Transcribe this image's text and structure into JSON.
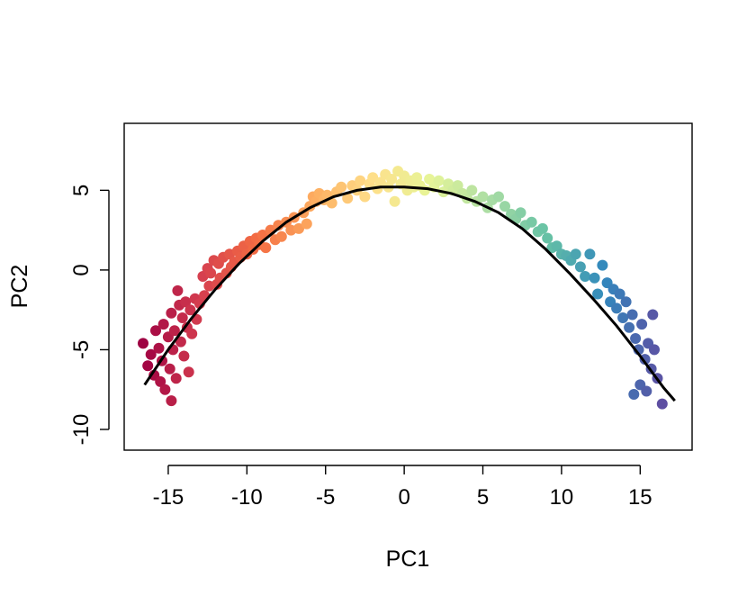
{
  "chart_data": {
    "type": "scatter",
    "title": "",
    "xlabel": "PC1",
    "ylabel": "PC2",
    "xlim": [
      -17.8,
      18.3
    ],
    "ylim": [
      -11.3,
      9.2
    ],
    "xticks": [
      -15,
      -10,
      -5,
      0,
      5,
      10,
      15
    ],
    "yticks": [
      -10,
      -5,
      0,
      5
    ],
    "xtick_labels": [
      "-15",
      "-10",
      "-5",
      "0",
      "5",
      "10",
      "15"
    ],
    "ytick_labels": [
      "-10",
      "-5",
      "0",
      "5"
    ],
    "grid": false,
    "legend": "none",
    "point_color_scale": "Spectral (dark red at PC1 = -16 through yellow near 0 to purple at PC1 = 16.5)",
    "colors": {
      "axis": "#000000",
      "curve": "#000000",
      "palette": [
        "#9e0142",
        "#d53e4f",
        "#f46d43",
        "#fdae61",
        "#fee08b",
        "#e6f598",
        "#abdda4",
        "#66c2a5",
        "#3288bd",
        "#5e4fa2"
      ]
    },
    "fitted_curve": {
      "name": "",
      "x": [
        -16.5,
        -15,
        -13.5,
        -12,
        -10.5,
        -9,
        -7.5,
        -6,
        -4.5,
        -3,
        -1.5,
        0,
        1.5,
        3,
        4.5,
        6,
        7.5,
        9,
        10.5,
        12,
        13.5,
        15,
        16.5,
        17.2
      ],
      "y": [
        -7.2,
        -5.0,
        -3.0,
        -1.2,
        0.4,
        1.8,
        3.0,
        3.9,
        4.6,
        5.0,
        5.2,
        5.2,
        5.1,
        4.8,
        4.3,
        3.6,
        2.6,
        1.3,
        -0.2,
        -1.8,
        -3.5,
        -5.4,
        -7.4,
        -8.2
      ]
    },
    "points": [
      [
        -16.6,
        -4.6
      ],
      [
        -16.3,
        -6.0
      ],
      [
        -16.1,
        -5.3
      ],
      [
        -15.9,
        -6.6
      ],
      [
        -15.8,
        -3.8
      ],
      [
        -15.6,
        -4.9
      ],
      [
        -15.5,
        -7.0
      ],
      [
        -15.4,
        -5.7
      ],
      [
        -15.3,
        -3.4
      ],
      [
        -15.2,
        -7.5
      ],
      [
        -15.0,
        -4.2
      ],
      [
        -14.9,
        -6.2
      ],
      [
        -14.8,
        -2.7
      ],
      [
        -14.8,
        -8.2
      ],
      [
        -14.7,
        -5.0
      ],
      [
        -14.6,
        -3.8
      ],
      [
        -14.5,
        -6.8
      ],
      [
        -14.4,
        -1.3
      ],
      [
        -14.3,
        -2.2
      ],
      [
        -14.2,
        -4.5
      ],
      [
        -14.1,
        -3.0
      ],
      [
        -14.0,
        -5.4
      ],
      [
        -13.9,
        -2.0
      ],
      [
        -13.8,
        -3.6
      ],
      [
        -13.7,
        -6.4
      ],
      [
        -13.6,
        -2.5
      ],
      [
        -13.5,
        -4.0
      ],
      [
        -13.3,
        -1.8
      ],
      [
        -13.2,
        -3.1
      ],
      [
        -13.0,
        -2.1
      ],
      [
        -12.8,
        -0.4
      ],
      [
        -12.7,
        -1.6
      ],
      [
        -12.5,
        0.1
      ],
      [
        -12.4,
        -1.0
      ],
      [
        -12.3,
        -0.2
      ],
      [
        -12.1,
        0.6
      ],
      [
        -11.9,
        -0.9
      ],
      [
        -11.8,
        0.4
      ],
      [
        -11.7,
        -0.5
      ],
      [
        -11.5,
        0.8
      ],
      [
        -11.3,
        -0.2
      ],
      [
        -11.1,
        1.0
      ],
      [
        -11.0,
        0.2
      ],
      [
        -10.8,
        0.5
      ],
      [
        -10.6,
        1.2
      ],
      [
        -10.4,
        0.8
      ],
      [
        -10.2,
        1.5
      ],
      [
        -10.0,
        1.0
      ],
      [
        -9.8,
        1.8
      ],
      [
        -9.6,
        1.3
      ],
      [
        -9.4,
        2.0
      ],
      [
        -9.2,
        1.6
      ],
      [
        -9.0,
        2.2
      ],
      [
        -8.8,
        1.4
      ],
      [
        -8.5,
        2.5
      ],
      [
        -8.2,
        1.9
      ],
      [
        -8.0,
        2.8
      ],
      [
        -7.8,
        2.1
      ],
      [
        -7.5,
        3.0
      ],
      [
        -7.2,
        2.5
      ],
      [
        -7.0,
        3.3
      ],
      [
        -6.7,
        2.6
      ],
      [
        -6.4,
        3.6
      ],
      [
        -6.2,
        2.9
      ],
      [
        -6.0,
        4.0
      ],
      [
        -5.8,
        4.6
      ],
      [
        -5.6,
        4.3
      ],
      [
        -5.4,
        4.8
      ],
      [
        -5.1,
        4.4
      ],
      [
        -4.9,
        4.7
      ],
      [
        -4.6,
        4.2
      ],
      [
        -4.3,
        4.9
      ],
      [
        -4.0,
        5.2
      ],
      [
        -3.6,
        4.5
      ],
      [
        -3.3,
        5.3
      ],
      [
        -3.0,
        5.0
      ],
      [
        -2.8,
        5.6
      ],
      [
        -2.5,
        4.6
      ],
      [
        -2.2,
        5.4
      ],
      [
        -2.0,
        5.8
      ],
      [
        -1.7,
        5.1
      ],
      [
        -1.5,
        5.5
      ],
      [
        -1.2,
        6.0
      ],
      [
        -1.0,
        5.2
      ],
      [
        -0.8,
        5.7
      ],
      [
        -0.6,
        4.3
      ],
      [
        -0.4,
        6.2
      ],
      [
        -0.2,
        5.4
      ],
      [
        0.0,
        5.9
      ],
      [
        0.2,
        5.0
      ],
      [
        0.4,
        5.6
      ],
      [
        0.6,
        5.2
      ],
      [
        0.8,
        5.8
      ],
      [
        1.0,
        5.3
      ],
      [
        1.3,
        5.0
      ],
      [
        1.6,
        5.7
      ],
      [
        1.9,
        5.2
      ],
      [
        2.2,
        5.6
      ],
      [
        2.5,
        4.9
      ],
      [
        2.8,
        5.4
      ],
      [
        3.1,
        5.0
      ],
      [
        3.4,
        5.3
      ],
      [
        3.7,
        4.8
      ],
      [
        4.0,
        4.5
      ],
      [
        4.3,
        5.0
      ],
      [
        4.6,
        4.3
      ],
      [
        5.0,
        4.6
      ],
      [
        5.3,
        3.9
      ],
      [
        5.6,
        4.4
      ],
      [
        6.0,
        4.6
      ],
      [
        6.4,
        4.0
      ],
      [
        6.8,
        3.5
      ],
      [
        7.1,
        3.2
      ],
      [
        7.4,
        3.6
      ],
      [
        7.7,
        2.8
      ],
      [
        8.1,
        3.0
      ],
      [
        8.5,
        2.4
      ],
      [
        8.8,
        2.6
      ],
      [
        9.1,
        2.0
      ],
      [
        9.4,
        1.4
      ],
      [
        9.7,
        1.5
      ],
      [
        10.0,
        1.0
      ],
      [
        10.3,
        0.9
      ],
      [
        10.6,
        0.6
      ],
      [
        10.9,
        1.0
      ],
      [
        11.2,
        0.2
      ],
      [
        11.5,
        -0.4
      ],
      [
        11.8,
        1.0
      ],
      [
        12.1,
        -0.5
      ],
      [
        12.3,
        -1.5
      ],
      [
        12.6,
        0.3
      ],
      [
        12.9,
        -0.8
      ],
      [
        13.1,
        -2.0
      ],
      [
        13.3,
        -1.2
      ],
      [
        13.5,
        -2.4
      ],
      [
        13.7,
        -1.5
      ],
      [
        13.9,
        -3.0
      ],
      [
        14.1,
        -2.0
      ],
      [
        14.3,
        -3.6
      ],
      [
        14.5,
        -2.8
      ],
      [
        14.7,
        -4.3
      ],
      [
        14.9,
        -5.0
      ],
      [
        15.1,
        -3.4
      ],
      [
        15.3,
        -5.6
      ],
      [
        15.5,
        -4.6
      ],
      [
        15.7,
        -6.2
      ],
      [
        15.8,
        -2.8
      ],
      [
        15.9,
        -5.0
      ],
      [
        16.1,
        -6.8
      ],
      [
        14.6,
        -7.8
      ],
      [
        15.0,
        -7.2
      ],
      [
        15.4,
        -7.6
      ],
      [
        16.4,
        -8.4
      ]
    ]
  }
}
